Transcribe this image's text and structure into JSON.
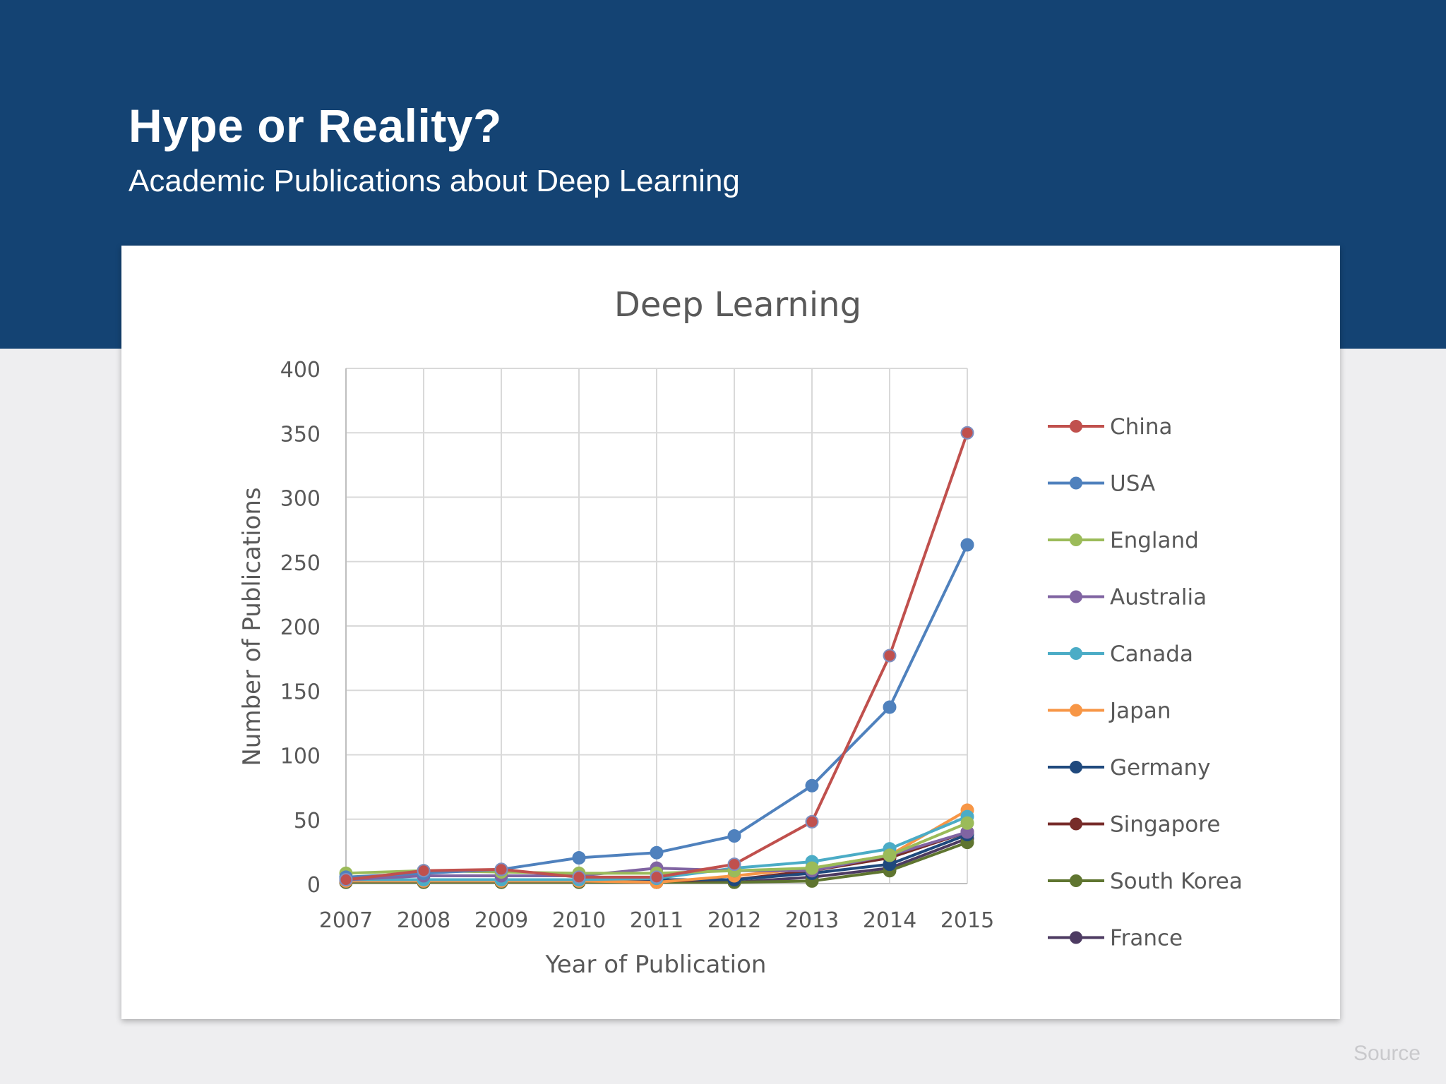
{
  "slide": {
    "title": "Hype or Reality?",
    "subtitle": "Academic Publications about Deep Learning",
    "source_label": "Source"
  },
  "colors": {
    "header_bg": "#144373",
    "page_bg": "#eeeef0",
    "card_bg": "#ffffff"
  },
  "chart_data": {
    "type": "line",
    "title": "Deep Learning",
    "xlabel": "Year of Publication",
    "ylabel": "Number of Publications",
    "x": [
      "2007",
      "2008",
      "2009",
      "2010",
      "2011",
      "2012",
      "2013",
      "2014",
      "2015"
    ],
    "ylim": [
      0,
      400
    ],
    "yticks": [
      0,
      50,
      100,
      150,
      200,
      250,
      300,
      350,
      400
    ],
    "grid": true,
    "legend": "right",
    "series": [
      {
        "name": "China",
        "color": "#c0504d",
        "values": [
          3,
          10,
          11,
          5,
          5,
          15,
          48,
          177,
          350
        ]
      },
      {
        "name": "USA",
        "color": "#4f81bd",
        "values": [
          5,
          8,
          11,
          20,
          24,
          37,
          76,
          137,
          263
        ]
      },
      {
        "name": "England",
        "color": "#9bbb59",
        "values": [
          8,
          10,
          9,
          8,
          8,
          10,
          12,
          22,
          47
        ]
      },
      {
        "name": "Australia",
        "color": "#8064a2",
        "values": [
          3,
          6,
          6,
          6,
          12,
          10,
          10,
          22,
          40
        ]
      },
      {
        "name": "Canada",
        "color": "#4bacc6",
        "values": [
          3,
          3,
          3,
          3,
          4,
          12,
          17,
          27,
          52
        ]
      },
      {
        "name": "Japan",
        "color": "#f79646",
        "values": [
          2,
          2,
          2,
          2,
          1,
          6,
          12,
          22,
          57
        ]
      },
      {
        "name": "Germany",
        "color": "#1f497d",
        "values": [
          2,
          2,
          2,
          2,
          3,
          3,
          8,
          15,
          38
        ]
      },
      {
        "name": "Singapore",
        "color": "#772c2a",
        "values": [
          2,
          2,
          2,
          2,
          2,
          3,
          10,
          20,
          40
        ]
      },
      {
        "name": "South Korea",
        "color": "#5f7530",
        "values": [
          1,
          1,
          1,
          1,
          1,
          1,
          2,
          10,
          32
        ]
      },
      {
        "name": "France",
        "color": "#4d3b62",
        "values": [
          1,
          1,
          1,
          1,
          1,
          1,
          5,
          12,
          35
        ]
      }
    ]
  }
}
